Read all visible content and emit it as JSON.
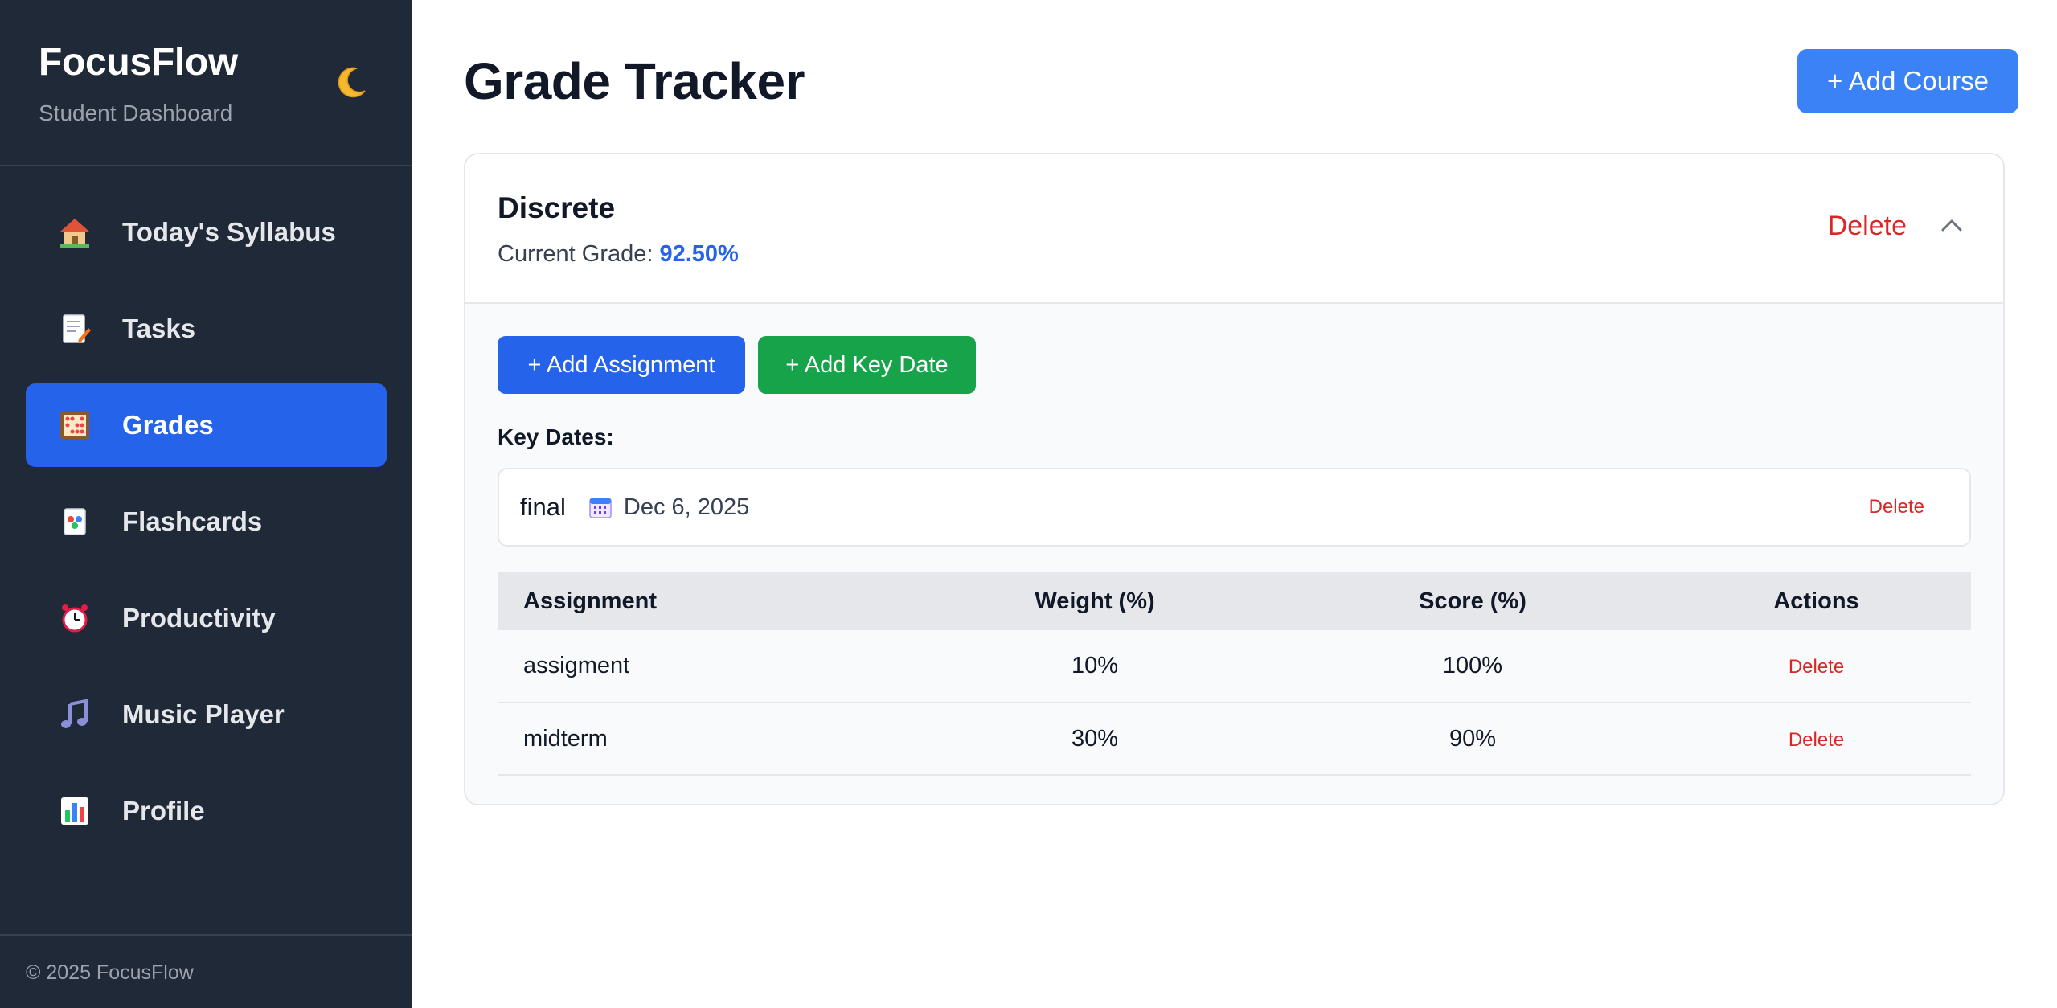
{
  "sidebar": {
    "brand_title": "FocusFlow",
    "brand_subtitle": "Student Dashboard",
    "theme_icon": "moon-icon",
    "items": [
      {
        "label": "Today's Syllabus",
        "icon": "house-icon",
        "active": false
      },
      {
        "label": "Tasks",
        "icon": "memo-icon",
        "active": false
      },
      {
        "label": "Grades",
        "icon": "abacus-icon",
        "active": true
      },
      {
        "label": "Flashcards",
        "icon": "cards-icon",
        "active": false
      },
      {
        "label": "Productivity",
        "icon": "alarm-clock-icon",
        "active": false
      },
      {
        "label": "Music Player",
        "icon": "music-note-icon",
        "active": false
      },
      {
        "label": "Profile",
        "icon": "bar-chart-icon",
        "active": false
      }
    ],
    "footer": "© 2025 FocusFlow"
  },
  "header": {
    "title": "Grade Tracker",
    "add_course_label": "+ Add Course"
  },
  "course": {
    "name": "Discrete",
    "grade_label": "Current Grade: ",
    "grade_value": "92.50%",
    "delete_label": "Delete",
    "add_assignment_label": "+ Add Assignment",
    "add_key_date_label": "+ Add Key Date",
    "key_dates_label": "Key Dates:",
    "key_dates": [
      {
        "name": "final",
        "date": "Dec 6, 2025",
        "delete_label": "Delete"
      }
    ],
    "table": {
      "headers": [
        "Assignment",
        "Weight (%)",
        "Score (%)",
        "Actions"
      ],
      "rows": [
        {
          "assignment": "assigment",
          "weight": "10%",
          "score": "100%",
          "action": "Delete"
        },
        {
          "assignment": "midterm",
          "weight": "30%",
          "score": "90%",
          "action": "Delete"
        }
      ]
    }
  },
  "colors": {
    "sidebar_bg": "#1f2937",
    "accent_blue": "#2563eb",
    "add_course_blue": "#3b82f6",
    "green": "#16a34a",
    "danger": "#dc2626"
  }
}
